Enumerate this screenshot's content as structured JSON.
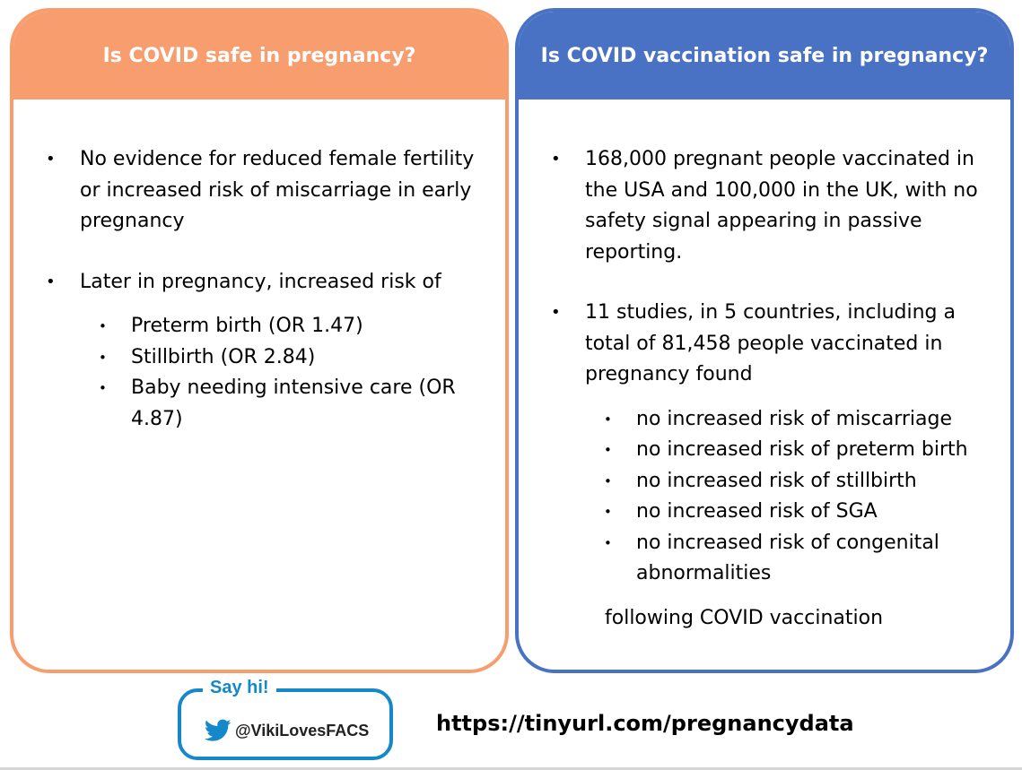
{
  "left_panel": {
    "title": "Is COVID safe in pregnancy?",
    "bullets": [
      "No evidence for reduced female fertility or increased risk of miscarriage in early pregnancy",
      "Later in pregnancy, increased risk of"
    ],
    "sub_bullets": [
      "Preterm birth (OR 1.47)",
      "Stillbirth (OR 2.84)",
      "Baby needing intensive care (OR 4.87)"
    ]
  },
  "right_panel": {
    "title": "Is COVID vaccination safe in pregnancy?",
    "bullets": [
      "168,000 pregnant people vaccinated in the USA and 100,000 in the UK, with no safety signal appearing in passive reporting.",
      "11 studies, in 5 countries, including a total of 81,458 people vaccinated in pregnancy found"
    ],
    "sub_bullets": [
      "no increased risk of miscarriage",
      "no increased risk of preterm birth",
      "no increased risk of stillbirth",
      "no increased risk of SGA",
      "no increased risk of congenital abnormalities"
    ],
    "footer": "following COVID vaccination"
  },
  "social": {
    "label": "Say hi!",
    "handle": "@VikiLovesFACS",
    "icon": "twitter-bird-icon",
    "color": "#1488C8"
  },
  "url": "https://tinyurl.com/pregnancydata",
  "colors": {
    "left_accent": "#F79D6E",
    "right_accent": "#4A72C4"
  }
}
